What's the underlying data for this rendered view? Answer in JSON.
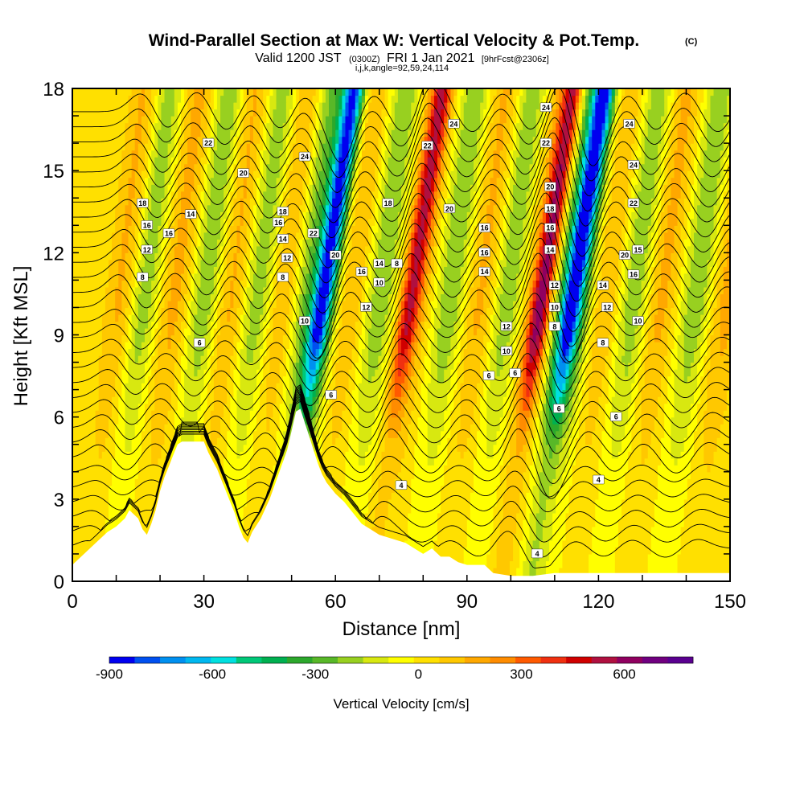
{
  "chart_data": {
    "type": "heatmap",
    "title": "Wind-Parallel Section at Max W: Vertical Velocity & Pot.Temp.",
    "title_mark": "(C)",
    "subtitle": {
      "prefix": "Valid 1200 JST",
      "utc": "(0300Z)",
      "date": "FRI 1 Jan 2021",
      "forecast": "[9hrFcst@2306z]"
    },
    "info_line": "i,j,k,angle=92,59,24,114",
    "xlabel": "Distance [nm]",
    "ylabel": "Height [Kft MSL]",
    "xlim": [
      0,
      150
    ],
    "ylim": [
      0,
      18
    ],
    "x_ticks": [
      "0",
      "30",
      "60",
      "90",
      "120",
      "150"
    ],
    "y_ticks": [
      "0",
      "3",
      "6",
      "9",
      "12",
      "15",
      "18"
    ],
    "colorbar": {
      "label": "Vertical Velocity [cm/s]",
      "tick_labels": [
        "-900",
        "-600",
        "-300",
        "0",
        "300",
        "600"
      ],
      "tick_values": [
        -900,
        -600,
        -300,
        0,
        300,
        600
      ],
      "min": -900,
      "max": 800,
      "colors": [
        "#0000f0",
        "#0050f0",
        "#0090f0",
        "#00b8f0",
        "#00e0e0",
        "#00c878",
        "#00b050",
        "#2ca82c",
        "#58b828",
        "#98d020",
        "#d8e810",
        "#ffff00",
        "#ffe000",
        "#ffc800",
        "#ffa800",
        "#ff8c00",
        "#ff5a00",
        "#f03010",
        "#d00000",
        "#b01040",
        "#900060",
        "#700080",
        "#5a0090"
      ]
    },
    "updraft_axes_x_nm": [
      8,
      20,
      33,
      45,
      60,
      75,
      90,
      103,
      118,
      131,
      146
    ],
    "downdraft_axes_x_nm": [
      13,
      27,
      39,
      50,
      55,
      67,
      83,
      96,
      109,
      113,
      125,
      139
    ],
    "strong_axes": [
      {
        "x_nm": 53,
        "w_cm_s": -650
      },
      {
        "x_nm": 110,
        "w_cm_s": -650
      },
      {
        "x_nm": 103,
        "w_cm_s": 500
      },
      {
        "x_nm": 73,
        "w_cm_s": 380
      }
    ],
    "terrain_profile": [
      [
        0,
        0.6
      ],
      [
        2,
        0.9
      ],
      [
        4,
        1.2
      ],
      [
        6,
        1.5
      ],
      [
        8,
        1.8
      ],
      [
        10,
        2.0
      ],
      [
        12,
        2.3
      ],
      [
        13,
        2.6
      ],
      [
        15,
        2.3
      ],
      [
        16,
        1.9
      ],
      [
        17,
        1.7
      ],
      [
        18,
        2.1
      ],
      [
        19,
        2.6
      ],
      [
        20,
        3.3
      ],
      [
        21,
        3.8
      ],
      [
        22,
        4.2
      ],
      [
        23,
        4.6
      ],
      [
        24,
        5.0
      ],
      [
        25,
        5.1
      ],
      [
        30,
        5.1
      ],
      [
        31,
        4.7
      ],
      [
        32,
        4.4
      ],
      [
        33,
        4.1
      ],
      [
        34,
        3.7
      ],
      [
        35,
        3.3
      ],
      [
        36,
        2.9
      ],
      [
        37,
        2.5
      ],
      [
        38,
        2.0
      ],
      [
        39,
        1.6
      ],
      [
        40,
        1.4
      ],
      [
        41,
        1.8
      ],
      [
        43,
        2.3
      ],
      [
        45,
        3.0
      ],
      [
        47,
        3.9
      ],
      [
        49,
        4.8
      ],
      [
        50,
        5.5
      ],
      [
        51,
        6.2
      ],
      [
        52,
        6.3
      ],
      [
        53,
        5.8
      ],
      [
        54,
        5.3
      ],
      [
        55,
        4.8
      ],
      [
        56,
        4.3
      ],
      [
        57,
        3.9
      ],
      [
        58,
        3.6
      ],
      [
        60,
        3.2
      ],
      [
        62,
        2.9
      ],
      [
        64,
        2.5
      ],
      [
        66,
        2.1
      ],
      [
        68,
        1.9
      ],
      [
        70,
        1.7
      ],
      [
        72,
        1.6
      ],
      [
        74,
        1.5
      ],
      [
        76,
        1.4
      ],
      [
        78,
        1.2
      ],
      [
        80,
        1.0
      ],
      [
        82,
        1.2
      ],
      [
        84,
        0.9
      ],
      [
        86,
        0.9
      ],
      [
        88,
        0.7
      ],
      [
        90,
        0.6
      ],
      [
        92,
        0.6
      ],
      [
        94,
        0.6
      ],
      [
        96,
        0.3
      ],
      [
        100,
        0.2
      ],
      [
        105,
        0.2
      ],
      [
        110,
        0.3
      ],
      [
        150,
        0.3
      ]
    ],
    "isentrope_labels": [
      {
        "x": 16,
        "y": 13.8,
        "text": "18"
      },
      {
        "x": 17,
        "y": 13.0,
        "text": "16"
      },
      {
        "x": 17,
        "y": 12.1,
        "text": "12"
      },
      {
        "x": 16,
        "y": 11.1,
        "text": "8"
      },
      {
        "x": 22,
        "y": 12.7,
        "text": "16"
      },
      {
        "x": 27,
        "y": 13.4,
        "text": "14"
      },
      {
        "x": 31,
        "y": 16.0,
        "text": "22"
      },
      {
        "x": 39,
        "y": 14.9,
        "text": "20"
      },
      {
        "x": 29,
        "y": 8.7,
        "text": "6"
      },
      {
        "x": 48,
        "y": 13.5,
        "text": "18"
      },
      {
        "x": 47,
        "y": 13.1,
        "text": "16"
      },
      {
        "x": 48,
        "y": 12.5,
        "text": "14"
      },
      {
        "x": 49,
        "y": 11.8,
        "text": "12"
      },
      {
        "x": 48,
        "y": 11.1,
        "text": "8"
      },
      {
        "x": 53,
        "y": 15.5,
        "text": "24"
      },
      {
        "x": 55,
        "y": 12.7,
        "text": "22"
      },
      {
        "x": 53,
        "y": 9.5,
        "text": "10"
      },
      {
        "x": 59,
        "y": 6.8,
        "text": "6"
      },
      {
        "x": 60,
        "y": 11.9,
        "text": "20"
      },
      {
        "x": 66,
        "y": 11.3,
        "text": "16"
      },
      {
        "x": 70,
        "y": 11.6,
        "text": "14"
      },
      {
        "x": 70,
        "y": 10.9,
        "text": "10"
      },
      {
        "x": 74,
        "y": 11.6,
        "text": "8"
      },
      {
        "x": 72,
        "y": 13.8,
        "text": "18"
      },
      {
        "x": 67,
        "y": 10.0,
        "text": "12"
      },
      {
        "x": 81,
        "y": 15.9,
        "text": "22"
      },
      {
        "x": 87,
        "y": 16.7,
        "text": "24"
      },
      {
        "x": 86,
        "y": 13.6,
        "text": "20"
      },
      {
        "x": 94,
        "y": 12.9,
        "text": "16"
      },
      {
        "x": 94,
        "y": 12.0,
        "text": "16"
      },
      {
        "x": 94,
        "y": 11.3,
        "text": "14"
      },
      {
        "x": 99,
        "y": 9.3,
        "text": "12"
      },
      {
        "x": 99,
        "y": 8.4,
        "text": "10"
      },
      {
        "x": 95,
        "y": 7.5,
        "text": "6"
      },
      {
        "x": 101,
        "y": 7.6,
        "text": "6"
      },
      {
        "x": 108,
        "y": 17.3,
        "text": "24"
      },
      {
        "x": 108,
        "y": 16.0,
        "text": "22"
      },
      {
        "x": 109,
        "y": 14.4,
        "text": "20"
      },
      {
        "x": 109,
        "y": 13.6,
        "text": "18"
      },
      {
        "x": 109,
        "y": 12.9,
        "text": "16"
      },
      {
        "x": 109,
        "y": 12.1,
        "text": "14"
      },
      {
        "x": 110,
        "y": 10.8,
        "text": "12"
      },
      {
        "x": 110,
        "y": 10.0,
        "text": "10"
      },
      {
        "x": 110,
        "y": 9.3,
        "text": "8"
      },
      {
        "x": 111,
        "y": 6.3,
        "text": "6"
      },
      {
        "x": 121,
        "y": 10.8,
        "text": "14"
      },
      {
        "x": 122,
        "y": 10.0,
        "text": "12"
      },
      {
        "x": 121,
        "y": 8.7,
        "text": "8"
      },
      {
        "x": 124,
        "y": 6.0,
        "text": "6"
      },
      {
        "x": 126,
        "y": 11.9,
        "text": "20"
      },
      {
        "x": 128,
        "y": 11.2,
        "text": "16"
      },
      {
        "x": 129,
        "y": 9.5,
        "text": "10"
      },
      {
        "x": 129,
        "y": 12.1,
        "text": "15"
      },
      {
        "x": 128,
        "y": 13.8,
        "text": "22"
      },
      {
        "x": 128,
        "y": 15.2,
        "text": "24"
      },
      {
        "x": 127,
        "y": 16.7,
        "text": "24"
      },
      {
        "x": 120,
        "y": 3.7,
        "text": "4"
      },
      {
        "x": 75,
        "y": 3.5,
        "text": "4"
      },
      {
        "x": 106,
        "y": 1.0,
        "text": "4"
      }
    ]
  }
}
